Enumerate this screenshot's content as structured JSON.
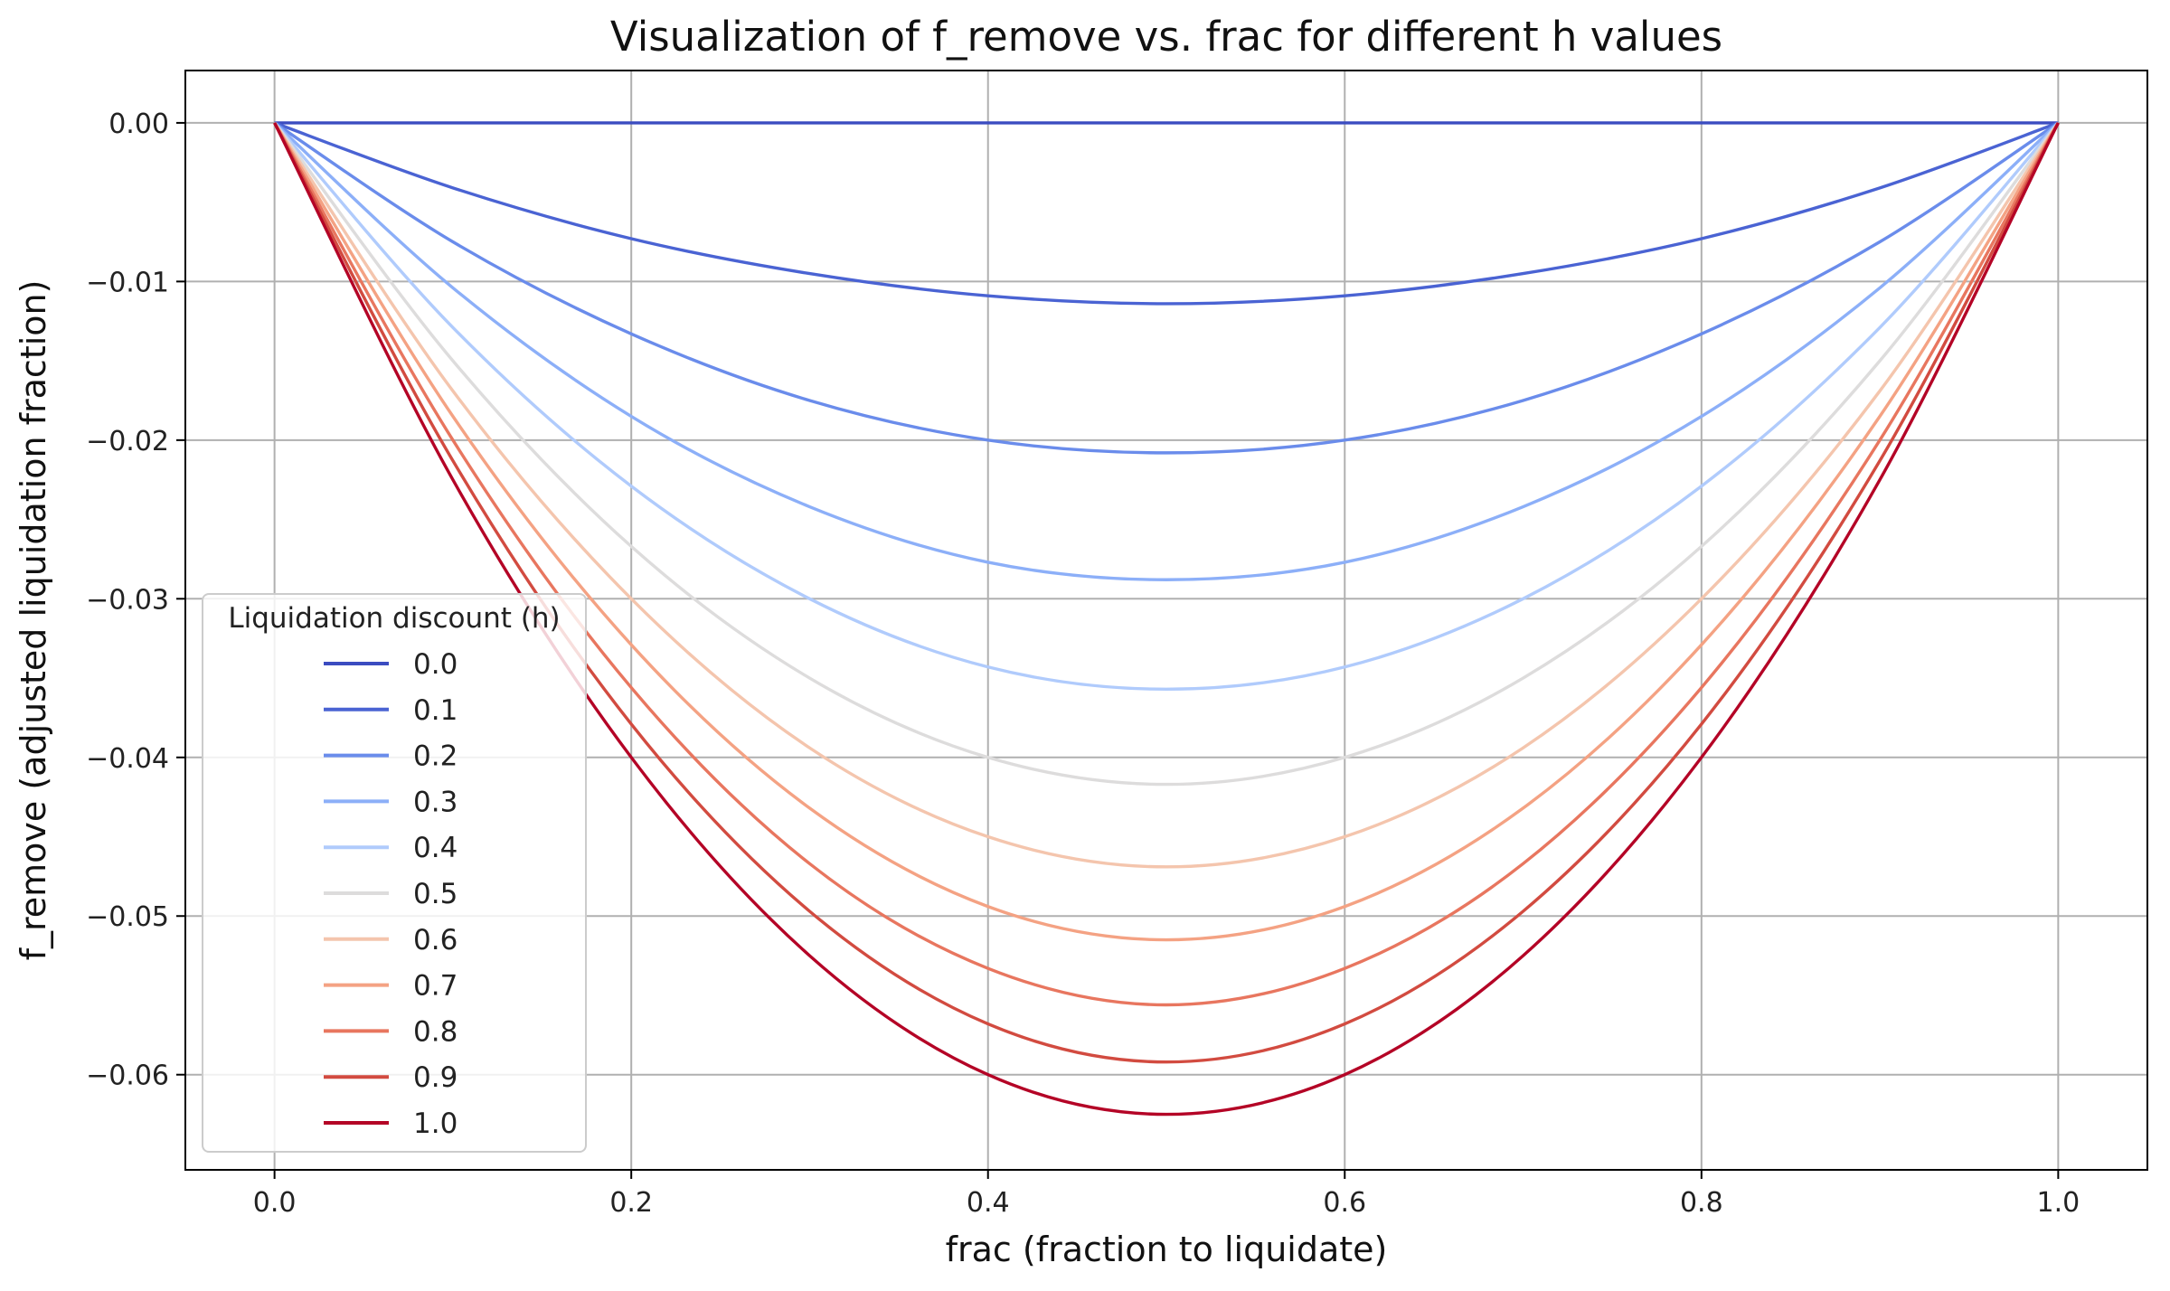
{
  "chart_data": {
    "type": "line",
    "title": "Visualization of f_remove vs. frac for different h values",
    "xlabel": "frac (fraction to liquidate)",
    "ylabel": "f_remove (adjusted liquidation fraction)",
    "xlim": [
      -0.05,
      1.05
    ],
    "ylim": [
      -0.066,
      0.0033
    ],
    "xticks": [
      0.0,
      0.2,
      0.4,
      0.6,
      0.8,
      1.0
    ],
    "xtick_labels": [
      "0.0",
      "0.2",
      "0.4",
      "0.6",
      "0.8",
      "1.0"
    ],
    "yticks": [
      0.0,
      -0.01,
      -0.02,
      -0.03,
      -0.04,
      -0.05,
      -0.06
    ],
    "ytick_labels": [
      "0.00",
      "−0.01",
      "−0.02",
      "−0.03",
      "−0.04",
      "−0.05",
      "−0.06"
    ],
    "grid": true,
    "legend": {
      "title": "Liquidation discount (h)",
      "placement": "lower-left"
    },
    "series": [
      {
        "name": "0.0",
        "color": "#3b4cc0",
        "x": [
          0.0,
          0.1,
          0.2,
          0.3,
          0.4,
          0.5,
          0.6,
          0.7,
          0.8,
          0.9,
          1.0
        ],
        "y": [
          0.0,
          0.0,
          0.0,
          0.0,
          0.0,
          0.0,
          0.0,
          0.0,
          0.0,
          0.0,
          0.0
        ]
      },
      {
        "name": "0.1",
        "color": "#4a63d3",
        "x": [
          0.0,
          0.1,
          0.2,
          0.3,
          0.4,
          0.5,
          0.6,
          0.7,
          0.8,
          0.9,
          1.0
        ],
        "y": [
          0.0,
          -0.0041,
          -0.0073,
          -0.0095,
          -0.0109,
          -0.0114,
          -0.0109,
          -0.0095,
          -0.0073,
          -0.0041,
          0.0
        ]
      },
      {
        "name": "0.2",
        "color": "#6a8ceb",
        "x": [
          0.0,
          0.1,
          0.2,
          0.3,
          0.4,
          0.5,
          0.6,
          0.7,
          0.8,
          0.9,
          1.0
        ],
        "y": [
          0.0,
          -0.0075,
          -0.0133,
          -0.0175,
          -0.02,
          -0.0208,
          -0.02,
          -0.0175,
          -0.0133,
          -0.0075,
          0.0
        ]
      },
      {
        "name": "0.3",
        "color": "#8caff8",
        "x": [
          0.0,
          0.1,
          0.2,
          0.3,
          0.4,
          0.5,
          0.6,
          0.7,
          0.8,
          0.9,
          1.0
        ],
        "y": [
          0.0,
          -0.0104,
          -0.0185,
          -0.0242,
          -0.0277,
          -0.0288,
          -0.0277,
          -0.0242,
          -0.0185,
          -0.0104,
          0.0
        ]
      },
      {
        "name": "0.4",
        "color": "#b0cbfc",
        "x": [
          0.0,
          0.1,
          0.2,
          0.3,
          0.4,
          0.5,
          0.6,
          0.7,
          0.8,
          0.9,
          1.0
        ],
        "y": [
          0.0,
          -0.0129,
          -0.0229,
          -0.03,
          -0.0343,
          -0.0357,
          -0.0343,
          -0.03,
          -0.0229,
          -0.0129,
          0.0
        ]
      },
      {
        "name": "0.5",
        "color": "#dddcdc",
        "x": [
          0.0,
          0.1,
          0.2,
          0.3,
          0.4,
          0.5,
          0.6,
          0.7,
          0.8,
          0.9,
          1.0
        ],
        "y": [
          0.0,
          -0.015,
          -0.0267,
          -0.035,
          -0.04,
          -0.0417,
          -0.04,
          -0.035,
          -0.0267,
          -0.015,
          0.0
        ]
      },
      {
        "name": "0.6",
        "color": "#f4c5ad",
        "x": [
          0.0,
          0.1,
          0.2,
          0.3,
          0.4,
          0.5,
          0.6,
          0.7,
          0.8,
          0.9,
          1.0
        ],
        "y": [
          0.0,
          -0.0169,
          -0.03,
          -0.0394,
          -0.045,
          -0.0469,
          -0.045,
          -0.0394,
          -0.03,
          -0.0169,
          0.0
        ]
      },
      {
        "name": "0.7",
        "color": "#f4a283",
        "x": [
          0.0,
          0.1,
          0.2,
          0.3,
          0.4,
          0.5,
          0.6,
          0.7,
          0.8,
          0.9,
          1.0
        ],
        "y": [
          0.0,
          -0.0185,
          -0.0329,
          -0.0432,
          -0.0494,
          -0.0515,
          -0.0494,
          -0.0432,
          -0.0329,
          -0.0185,
          0.0
        ]
      },
      {
        "name": "0.8",
        "color": "#e8765f",
        "x": [
          0.0,
          0.1,
          0.2,
          0.3,
          0.4,
          0.5,
          0.6,
          0.7,
          0.8,
          0.9,
          1.0
        ],
        "y": [
          0.0,
          -0.02,
          -0.0356,
          -0.0467,
          -0.0533,
          -0.0556,
          -0.0533,
          -0.0467,
          -0.0356,
          -0.02,
          0.0
        ]
      },
      {
        "name": "0.9",
        "color": "#d24b40",
        "x": [
          0.0,
          0.1,
          0.2,
          0.3,
          0.4,
          0.5,
          0.6,
          0.7,
          0.8,
          0.9,
          1.0
        ],
        "y": [
          0.0,
          -0.0213,
          -0.0379,
          -0.0497,
          -0.0568,
          -0.0592,
          -0.0568,
          -0.0497,
          -0.0379,
          -0.0213,
          0.0
        ]
      },
      {
        "name": "1.0",
        "color": "#b40426",
        "x": [
          0.0,
          0.1,
          0.2,
          0.3,
          0.4,
          0.5,
          0.6,
          0.7,
          0.8,
          0.9,
          1.0
        ],
        "y": [
          0.0,
          -0.0225,
          -0.04,
          -0.0525,
          -0.06,
          -0.0625,
          -0.06,
          -0.0525,
          -0.04,
          -0.0225,
          0.0
        ]
      }
    ]
  }
}
